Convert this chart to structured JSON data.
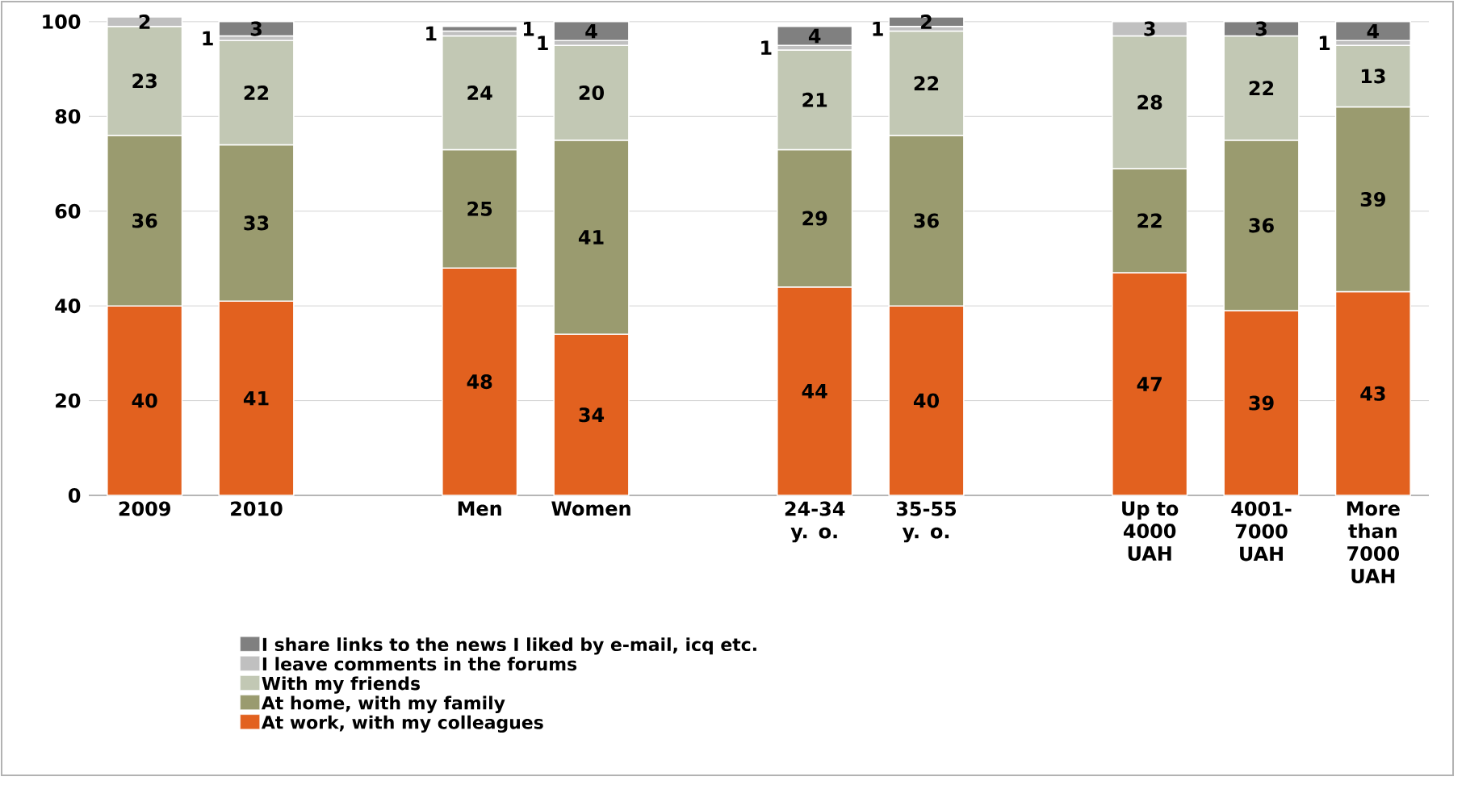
{
  "chart_data": {
    "type": "bar",
    "stacked": true,
    "data_labels": true,
    "grid": "y",
    "legend": "bottom",
    "categories": [
      "2009",
      "2010",
      null,
      "Men",
      "Women",
      null,
      "24-34 y. o.",
      "35-55 y. o.",
      null,
      "Up to 4000 UAH",
      "4001-7000 UAH",
      "More than 7000 UAH"
    ],
    "ylim": [
      0,
      101
    ],
    "yticks": [
      0,
      20,
      40,
      60,
      80,
      100
    ],
    "series": [
      {
        "name": "At work, with my colleagues",
        "color": "#e2611f",
        "values": [
          40,
          41,
          null,
          48,
          34,
          null,
          44,
          40,
          null,
          47,
          39,
          43
        ]
      },
      {
        "name": "At home, with my family",
        "color": "#9a9b6f",
        "values": [
          36,
          33,
          null,
          25,
          41,
          null,
          29,
          36,
          null,
          22,
          36,
          39
        ]
      },
      {
        "name": "With my friends",
        "color": "#c2c8b4",
        "values": [
          23,
          22,
          null,
          24,
          20,
          null,
          21,
          22,
          null,
          28,
          22,
          13
        ]
      },
      {
        "name": "I leave comments in the forums",
        "color": "#c0c0c0",
        "values": [
          2,
          1,
          null,
          1,
          1,
          null,
          1,
          1,
          null,
          3,
          null,
          1
        ]
      },
      {
        "name": "I share links to the news I liked by e-mail, icq etc.",
        "color": "#808080",
        "values": [
          null,
          3,
          null,
          1,
          4,
          null,
          4,
          2,
          null,
          null,
          3,
          4
        ]
      }
    ]
  }
}
